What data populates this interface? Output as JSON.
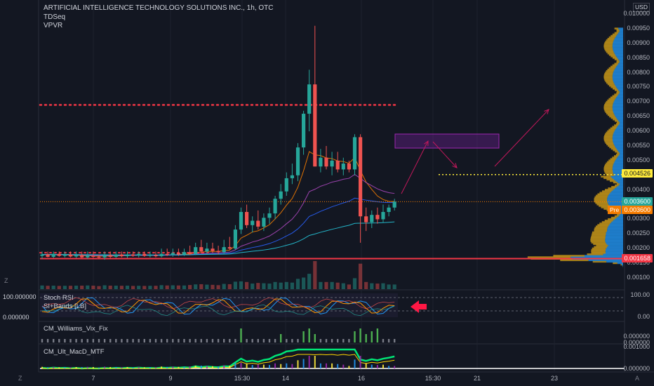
{
  "header": {
    "title": "ARTIFICIAL INTELLIGENCE TECHNOLOGY SOLUTIONS INC., 1h, OTC",
    "indicator_1": "TDSeq",
    "indicator_2": "VPVR"
  },
  "currency_badge": "USD",
  "price_axis": {
    "ticks": [
      "0.010000",
      "0.00950",
      "0.00900",
      "0.00850",
      "0.00800",
      "0.00750",
      "0.00700",
      "0.00650",
      "0.00600",
      "0.00550",
      "0.00500",
      "0.00450",
      "0.00400",
      "0.00300",
      "0.00250",
      "0.00200",
      "0.00150",
      "0.00100"
    ],
    "tick_values": [
      0.01,
      0.0095,
      0.009,
      0.0085,
      0.008,
      0.0075,
      0.007,
      0.0065,
      0.006,
      0.0055,
      0.005,
      0.0045,
      0.004,
      0.003,
      0.0025,
      0.002,
      0.0015,
      0.001
    ]
  },
  "price_tags": {
    "target": {
      "label": "0.004526",
      "color": "#ffeb3b",
      "value": 0.004526
    },
    "last": {
      "label": "0.003600",
      "color": "#26a69a",
      "value": 0.0036
    },
    "pre": {
      "badge": "Pre",
      "label": "0.003600",
      "color": "#f57c00",
      "value": 0.0036
    },
    "support": {
      "label": "0.001658",
      "color": "#f23645",
      "value": 0.001658
    }
  },
  "resistance_level": 0.0069,
  "stoch_pane": {
    "label_1": "Stoch RSI",
    "label_2": "SI+Bands [LB]",
    "left_top": "100.000000",
    "left_bottom": "0.000000",
    "right_top": "100.00",
    "right_bottom": "0.00"
  },
  "vix_pane": {
    "label": "CM_Williams_Vix_Fix",
    "right_top": "0.000000",
    "right_bottom": "0.000000"
  },
  "macd_pane": {
    "label": "CM_Ult_MacD_MTF",
    "right_top": "0.001000",
    "right_bottom": "0.000000"
  },
  "time_axis": {
    "labels": [
      "7",
      "9",
      "15:30",
      "14",
      "16",
      "15:30",
      "21",
      "23"
    ]
  },
  "corner_left": "Z",
  "corner_right": "A",
  "colors": {
    "background": "#131722",
    "up": "#26a69a",
    "down": "#ef5350",
    "support_line": "#f23645",
    "target_line": "#ffeb3b",
    "box": "#7b1fa2",
    "arrow": "#c2185b"
  },
  "chart_data": {
    "type": "candlestick",
    "x": [
      "7",
      "9",
      "15:30",
      "14",
      "16"
    ],
    "ylim": [
      0.001,
      0.0101
    ],
    "candles": [
      {
        "o": 0.00175,
        "h": 0.0019,
        "l": 0.00165,
        "c": 0.0018
      },
      {
        "o": 0.0018,
        "h": 0.0019,
        "l": 0.0017,
        "c": 0.00172
      },
      {
        "o": 0.00172,
        "h": 0.0019,
        "l": 0.00168,
        "c": 0.00182
      },
      {
        "o": 0.00182,
        "h": 0.0019,
        "l": 0.00172,
        "c": 0.00175
      },
      {
        "o": 0.00175,
        "h": 0.0019,
        "l": 0.0017,
        "c": 0.0018
      },
      {
        "o": 0.0018,
        "h": 0.0019,
        "l": 0.0017,
        "c": 0.00173
      },
      {
        "o": 0.00173,
        "h": 0.0019,
        "l": 0.00168,
        "c": 0.00178
      },
      {
        "o": 0.00178,
        "h": 0.0019,
        "l": 0.00168,
        "c": 0.0017
      },
      {
        "o": 0.0017,
        "h": 0.0019,
        "l": 0.00165,
        "c": 0.00176
      },
      {
        "o": 0.00176,
        "h": 0.0019,
        "l": 0.00168,
        "c": 0.00172
      },
      {
        "o": 0.00172,
        "h": 0.0018,
        "l": 0.00165,
        "c": 0.0017
      },
      {
        "o": 0.0017,
        "h": 0.0019,
        "l": 0.00162,
        "c": 0.00178
      },
      {
        "o": 0.00178,
        "h": 0.0019,
        "l": 0.00168,
        "c": 0.00172
      },
      {
        "o": 0.00172,
        "h": 0.0019,
        "l": 0.00168,
        "c": 0.0018
      },
      {
        "o": 0.0018,
        "h": 0.0019,
        "l": 0.0017,
        "c": 0.00174
      },
      {
        "o": 0.00174,
        "h": 0.0019,
        "l": 0.00168,
        "c": 0.0018
      },
      {
        "o": 0.0018,
        "h": 0.0019,
        "l": 0.00172,
        "c": 0.00176
      },
      {
        "o": 0.00176,
        "h": 0.0019,
        "l": 0.0017,
        "c": 0.00182
      },
      {
        "o": 0.00182,
        "h": 0.0019,
        "l": 0.00172,
        "c": 0.00175
      },
      {
        "o": 0.00175,
        "h": 0.0019,
        "l": 0.0017,
        "c": 0.00178
      },
      {
        "o": 0.00178,
        "h": 0.0019,
        "l": 0.0017,
        "c": 0.00174
      },
      {
        "o": 0.00174,
        "h": 0.002,
        "l": 0.0017,
        "c": 0.00182
      },
      {
        "o": 0.00182,
        "h": 0.002,
        "l": 0.00175,
        "c": 0.00178
      },
      {
        "o": 0.00178,
        "h": 0.002,
        "l": 0.00172,
        "c": 0.00185
      },
      {
        "o": 0.00185,
        "h": 0.002,
        "l": 0.00175,
        "c": 0.0018
      },
      {
        "o": 0.0018,
        "h": 0.002,
        "l": 0.00175,
        "c": 0.00188
      },
      {
        "o": 0.00188,
        "h": 0.0021,
        "l": 0.00178,
        "c": 0.00182
      },
      {
        "o": 0.00182,
        "h": 0.0022,
        "l": 0.00178,
        "c": 0.00205
      },
      {
        "o": 0.00205,
        "h": 0.0023,
        "l": 0.00185,
        "c": 0.0019
      },
      {
        "o": 0.0019,
        "h": 0.0022,
        "l": 0.00182,
        "c": 0.002
      },
      {
        "o": 0.002,
        "h": 0.0022,
        "l": 0.00185,
        "c": 0.00192
      },
      {
        "o": 0.00192,
        "h": 0.0021,
        "l": 0.0018,
        "c": 0.00188
      },
      {
        "o": 0.00188,
        "h": 0.0023,
        "l": 0.0018,
        "c": 0.00205
      },
      {
        "o": 0.00205,
        "h": 0.0024,
        "l": 0.00195,
        "c": 0.002
      },
      {
        "o": 0.002,
        "h": 0.0028,
        "l": 0.00195,
        "c": 0.00265
      },
      {
        "o": 0.00265,
        "h": 0.0034,
        "l": 0.0025,
        "c": 0.00325
      },
      {
        "o": 0.00325,
        "h": 0.0035,
        "l": 0.0027,
        "c": 0.0028
      },
      {
        "o": 0.0028,
        "h": 0.0031,
        "l": 0.00255,
        "c": 0.00295
      },
      {
        "o": 0.00295,
        "h": 0.0033,
        "l": 0.00265,
        "c": 0.00275
      },
      {
        "o": 0.00275,
        "h": 0.0032,
        "l": 0.0026,
        "c": 0.00305
      },
      {
        "o": 0.00305,
        "h": 0.0034,
        "l": 0.00285,
        "c": 0.0032
      },
      {
        "o": 0.0032,
        "h": 0.0038,
        "l": 0.003,
        "c": 0.0037
      },
      {
        "o": 0.0037,
        "h": 0.0042,
        "l": 0.0035,
        "c": 0.00395
      },
      {
        "o": 0.00395,
        "h": 0.0046,
        "l": 0.0038,
        "c": 0.0044
      },
      {
        "o": 0.0044,
        "h": 0.0049,
        "l": 0.0042,
        "c": 0.0045
      },
      {
        "o": 0.0045,
        "h": 0.0056,
        "l": 0.0043,
        "c": 0.00545
      },
      {
        "o": 0.00545,
        "h": 0.0067,
        "l": 0.0052,
        "c": 0.0066
      },
      {
        "o": 0.0066,
        "h": 0.0081,
        "l": 0.006,
        "c": 0.0076
      },
      {
        "o": 0.0076,
        "h": 0.0096,
        "l": 0.0048,
        "c": 0.0048
      },
      {
        "o": 0.0048,
        "h": 0.0054,
        "l": 0.0046,
        "c": 0.0051
      },
      {
        "o": 0.0051,
        "h": 0.0055,
        "l": 0.0047,
        "c": 0.0048
      },
      {
        "o": 0.0048,
        "h": 0.0053,
        "l": 0.0045,
        "c": 0.005
      },
      {
        "o": 0.005,
        "h": 0.0053,
        "l": 0.0046,
        "c": 0.0047
      },
      {
        "o": 0.0047,
        "h": 0.0051,
        "l": 0.0045,
        "c": 0.0049
      },
      {
        "o": 0.0049,
        "h": 0.005,
        "l": 0.0046,
        "c": 0.0047
      },
      {
        "o": 0.0047,
        "h": 0.0059,
        "l": 0.0045,
        "c": 0.0058
      },
      {
        "o": 0.0058,
        "h": 0.0059,
        "l": 0.0022,
        "c": 0.0031
      },
      {
        "o": 0.0031,
        "h": 0.0034,
        "l": 0.0026,
        "c": 0.0029
      },
      {
        "o": 0.0029,
        "h": 0.0033,
        "l": 0.0027,
        "c": 0.00315
      },
      {
        "o": 0.00315,
        "h": 0.0034,
        "l": 0.00285,
        "c": 0.003
      },
      {
        "o": 0.003,
        "h": 0.0035,
        "l": 0.0029,
        "c": 0.00325
      },
      {
        "o": 0.00325,
        "h": 0.0035,
        "l": 0.0031,
        "c": 0.0034
      },
      {
        "o": 0.0034,
        "h": 0.0037,
        "l": 0.0033,
        "c": 0.0036
      }
    ]
  }
}
